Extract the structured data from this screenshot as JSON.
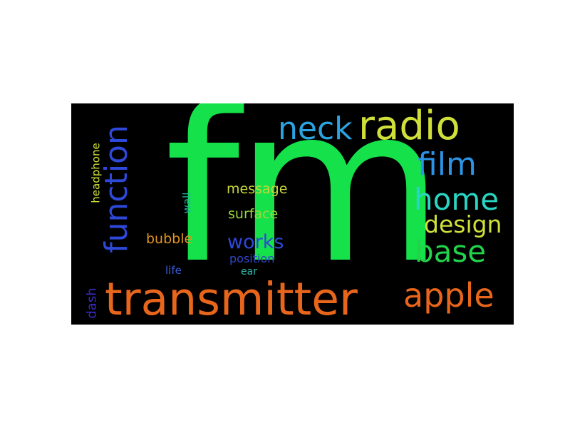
{
  "wordcloud": {
    "background": "#000000",
    "words": {
      "fm": {
        "text": "fm",
        "color": "#15e24a"
      },
      "transmitter": {
        "text": "transmitter",
        "color": "#e8661c"
      },
      "apple": {
        "text": "apple",
        "color": "#e8661c"
      },
      "radio": {
        "text": "radio",
        "color": "#cfe03a"
      },
      "neck": {
        "text": "neck",
        "color": "#2ba3e0"
      },
      "film": {
        "text": "film",
        "color": "#2b94e6"
      },
      "home": {
        "text": "home",
        "color": "#28d6c3"
      },
      "design": {
        "text": "design",
        "color": "#cfe03a"
      },
      "base": {
        "text": "base",
        "color": "#22d34a"
      },
      "function": {
        "text": "function",
        "color": "#2e48d8"
      },
      "works": {
        "text": "works",
        "color": "#2e48d8"
      },
      "message": {
        "text": "message",
        "color": "#c8d83a"
      },
      "surface": {
        "text": "surface",
        "color": "#98d83a"
      },
      "bubble": {
        "text": "bubble",
        "color": "#e0951f"
      },
      "position": {
        "text": "position",
        "color": "#3145c6"
      },
      "ear": {
        "text": "ear",
        "color": "#2bbcae"
      },
      "life": {
        "text": "life",
        "color": "#3a5ad8"
      },
      "wall": {
        "text": "wall",
        "color": "#1eb89a"
      },
      "headphone": {
        "text": "headphone",
        "color": "#cfe03a"
      },
      "dash": {
        "text": "dash",
        "color": "#3a2bc4"
      }
    }
  }
}
